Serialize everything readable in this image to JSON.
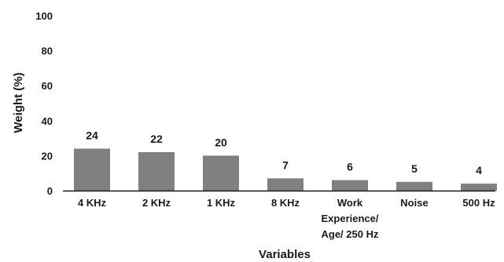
{
  "chart_data": {
    "type": "bar",
    "categories": [
      "4 KHz",
      "2 KHz",
      "1 KHz",
      "8 KHz",
      "Work Experience/ Age/ 250 Hz",
      "Noise",
      "500 Hz"
    ],
    "category_lines": [
      [
        "4 KHz"
      ],
      [
        "2 KHz"
      ],
      [
        "1 KHz"
      ],
      [
        "8 KHz"
      ],
      [
        "Work",
        "Experience/",
        "Age/ 250 Hz"
      ],
      [
        "Noise"
      ],
      [
        "500 Hz"
      ]
    ],
    "values": [
      24,
      22,
      20,
      7,
      6,
      5,
      4
    ],
    "data_labels": [
      "24",
      "22",
      "20",
      "7",
      "6",
      "5",
      "4"
    ],
    "xlabel": "Variables",
    "ylabel": "Weight (%)",
    "ylim": [
      0,
      100
    ],
    "yticks": [
      0,
      20,
      40,
      60,
      80,
      100
    ],
    "ytick_labels": [
      "0",
      "20",
      "40",
      "60",
      "80",
      "100"
    ],
    "grid": false,
    "bar_color": "#808080"
  }
}
